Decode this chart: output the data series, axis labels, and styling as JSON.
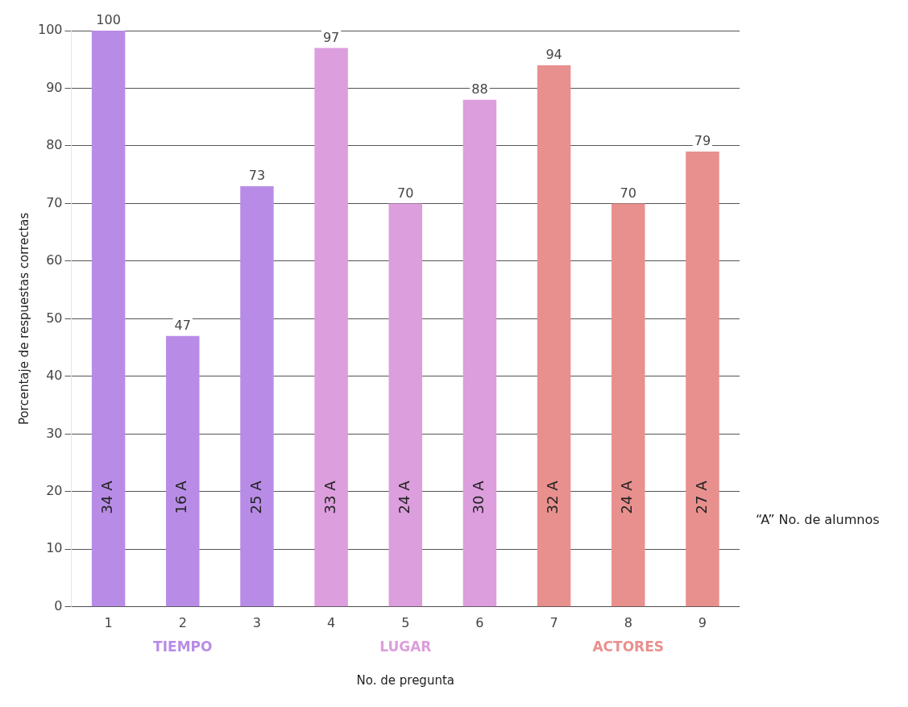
{
  "chart_data": {
    "type": "bar",
    "xlabel": "No. de pregunta",
    "ylabel": "Porcentaje de respuestas correctas",
    "categories": [
      "1",
      "2",
      "3",
      "4",
      "5",
      "6",
      "7",
      "8",
      "9"
    ],
    "values": [
      100,
      47,
      73,
      97,
      70,
      88,
      94,
      70,
      79
    ],
    "colors": [
      "#b88ce6",
      "#b88ce6",
      "#b88ce6",
      "#dc9edc",
      "#dc9edc",
      "#dc9edc",
      "#e8908e",
      "#e8908e",
      "#e8908e"
    ],
    "data_labels": true,
    "ylim": [
      0,
      100
    ],
    "yticks": [
      0,
      10,
      20,
      30,
      40,
      50,
      60,
      70,
      80,
      90,
      100
    ],
    "grid": "y",
    "legend": false,
    "annotations": [
      "34 A",
      "16 A",
      "25 A",
      "33 A",
      "24 A",
      "30 A",
      "32 A",
      "24 A",
      "27 A",
      "TIEMPO",
      "LUGAR",
      "ACTORES",
      "“A” No. de alumnos"
    ]
  }
}
